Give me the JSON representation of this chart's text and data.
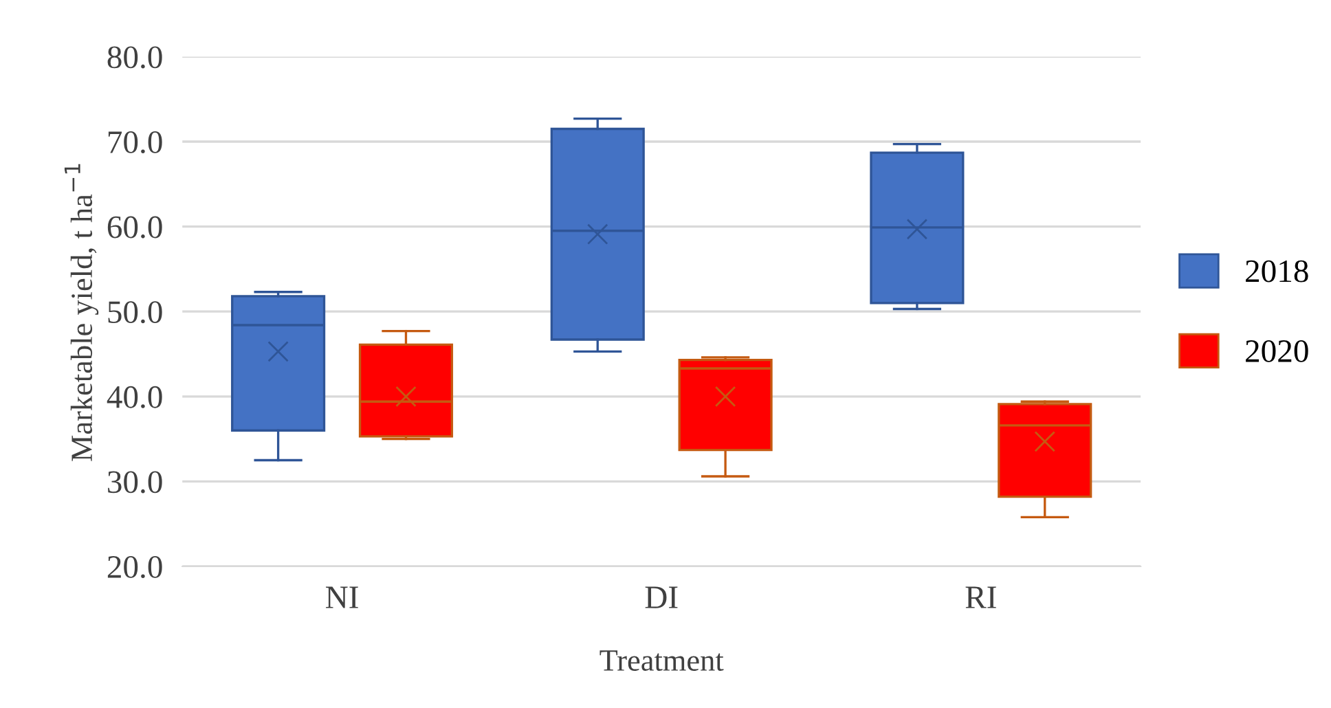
{
  "chart_data": {
    "type": "box",
    "xlabel": "Treatment",
    "ylabel": "Marketable yield, t ha$^{−1}$",
    "categories": [
      "NI",
      "DI",
      "RI"
    ],
    "ylim": [
      20,
      80
    ],
    "yticks": [
      {
        "value": 20,
        "label": "20.0"
      },
      {
        "value": 30,
        "label": "30.0"
      },
      {
        "value": 40,
        "label": "40.0"
      },
      {
        "value": 50,
        "label": "50.0"
      },
      {
        "value": 60,
        "label": "60.0"
      },
      {
        "value": 70,
        "label": "70.0"
      },
      {
        "value": 80,
        "label": "80.0"
      }
    ],
    "grid": "y",
    "legend": "right",
    "series": [
      {
        "name": "2018",
        "color": "#4472c4",
        "boxes": [
          {
            "low": 32.5,
            "q1": 36.0,
            "median": 48.4,
            "q3": 51.8,
            "high": 52.3,
            "mean": 45.3
          },
          {
            "low": 45.3,
            "q1": 46.7,
            "median": 59.5,
            "q3": 71.5,
            "high": 72.7,
            "mean": 59.1
          },
          {
            "low": 50.3,
            "q1": 51.0,
            "median": 59.9,
            "q3": 68.7,
            "high": 69.7,
            "mean": 59.7
          }
        ]
      },
      {
        "name": "2020",
        "color": "#ff0000",
        "boxes": [
          {
            "low": 35.0,
            "q1": 35.3,
            "median": 39.4,
            "q3": 46.1,
            "high": 47.7,
            "mean": 40.0
          },
          {
            "low": 30.6,
            "q1": 33.7,
            "median": 43.3,
            "q3": 44.3,
            "high": 44.6,
            "mean": 40.0
          },
          {
            "low": 25.8,
            "q1": 28.2,
            "median": 36.6,
            "q3": 39.1,
            "high": 39.4,
            "mean": 34.7
          }
        ]
      }
    ]
  }
}
